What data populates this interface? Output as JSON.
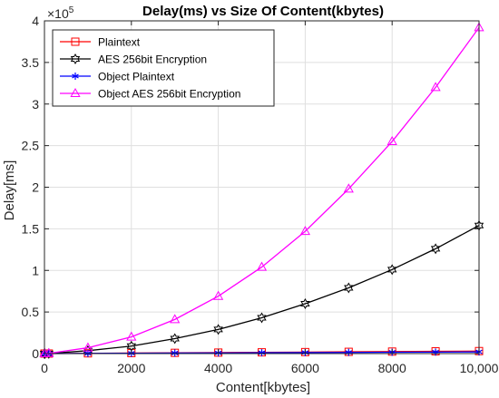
{
  "chart_data": {
    "type": "line",
    "title": "Delay(ms) vs Size Of Content(kbytes)",
    "xlabel": "Content[kbytes]",
    "ylabel": "Delay[ms]",
    "xlim": [
      0,
      10000
    ],
    "ylim": [
      0,
      400000
    ],
    "x_ticks": [
      0,
      2000,
      4000,
      6000,
      8000,
      10000
    ],
    "x_tick_labels": [
      "0",
      "2000",
      "4000",
      "6000",
      "8000",
      "10,000"
    ],
    "y_ticks": [
      0,
      50000,
      100000,
      150000,
      200000,
      250000,
      300000,
      350000,
      400000
    ],
    "y_tick_labels": [
      "0",
      "0.5",
      "1",
      "1.5",
      "2",
      "2.5",
      "3",
      "3.5",
      "4"
    ],
    "y_exponent_label": "×10",
    "y_exponent_power": "5",
    "grid": true,
    "legend_position": "top-left",
    "x": [
      0,
      10,
      100,
      1000,
      2000,
      3000,
      4000,
      5000,
      6000,
      7000,
      8000,
      9000,
      10000
    ],
    "series": [
      {
        "name": "Plaintext",
        "color": "#ff0000",
        "marker": "square",
        "values": [
          0,
          3,
          30,
          300,
          600,
          900,
          1200,
          1500,
          1800,
          2100,
          2400,
          2700,
          3000
        ]
      },
      {
        "name": "AES 256bit Encryption",
        "color": "#000000",
        "marker": "hexagram",
        "values": [
          0,
          15,
          150,
          3500,
          9000,
          18000,
          29000,
          43000,
          60000,
          79000,
          101000,
          126000,
          154000
        ]
      },
      {
        "name": "Object Plaintext",
        "color": "#0000ff",
        "marker": "asterisk",
        "values": [
          0,
          2,
          20,
          200,
          400,
          600,
          800,
          1000,
          1200,
          1400,
          1600,
          1800,
          2000
        ]
      },
      {
        "name": "Object AES 256bit Encryption",
        "color": "#ff00ff",
        "marker": "triangle",
        "values": [
          0,
          30,
          300,
          7000,
          20000,
          41000,
          69000,
          104000,
          147000,
          198000,
          255000,
          320000,
          392000
        ]
      }
    ]
  }
}
